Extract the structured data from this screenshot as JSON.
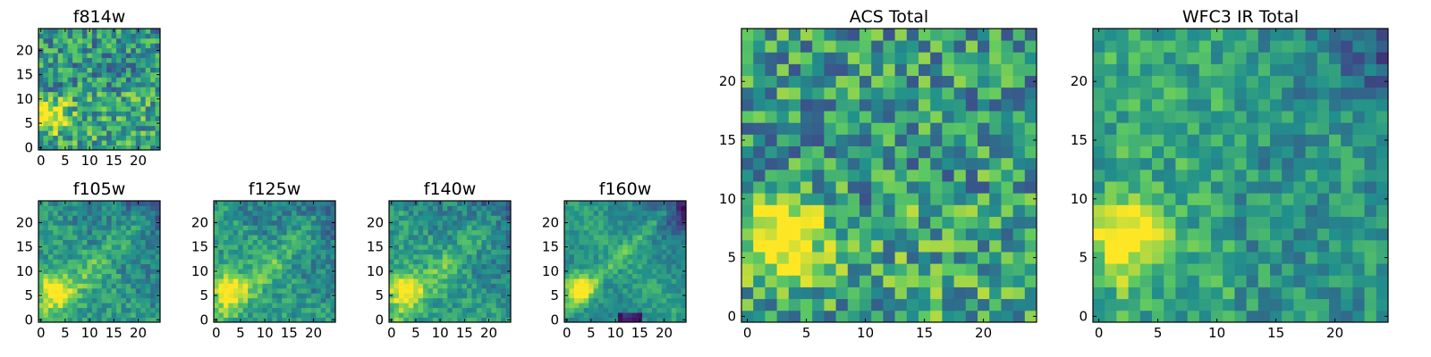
{
  "chart_data": [
    {
      "type": "heatmap",
      "title": "f814w",
      "pattern": "f814w",
      "seed": 11,
      "grid": 25,
      "xlim": [
        0,
        24
      ],
      "ylim": [
        0,
        24
      ],
      "xticks": [
        "0",
        "5",
        "10",
        "15",
        "20"
      ],
      "yticks": [
        "0",
        "5",
        "10",
        "15",
        "20"
      ]
    },
    {
      "type": "heatmap",
      "title": "f105w",
      "pattern": "ir",
      "seed": 23,
      "grid": 25,
      "xlim": [
        0,
        24
      ],
      "ylim": [
        0,
        24
      ],
      "xticks": [
        "0",
        "5",
        "10",
        "15",
        "20"
      ],
      "yticks": [
        "0",
        "5",
        "10",
        "15",
        "20"
      ]
    },
    {
      "type": "heatmap",
      "title": "f125w",
      "pattern": "ir",
      "seed": 37,
      "grid": 25,
      "xlim": [
        0,
        24
      ],
      "ylim": [
        0,
        24
      ],
      "xticks": [
        "0",
        "5",
        "10",
        "15",
        "20"
      ],
      "yticks": [
        "0",
        "5",
        "10",
        "15",
        "20"
      ]
    },
    {
      "type": "heatmap",
      "title": "f140w",
      "pattern": "ir",
      "seed": 41,
      "grid": 25,
      "xlim": [
        0,
        24
      ],
      "ylim": [
        0,
        24
      ],
      "xticks": [
        "0",
        "5",
        "10",
        "15",
        "20"
      ],
      "yticks": [
        "0",
        "5",
        "10",
        "15",
        "20"
      ]
    },
    {
      "type": "heatmap",
      "title": "f160w",
      "pattern": "ir160",
      "seed": 53,
      "grid": 25,
      "xlim": [
        0,
        24
      ],
      "ylim": [
        0,
        24
      ],
      "xticks": [
        "0",
        "5",
        "10",
        "15",
        "20"
      ],
      "yticks": [
        "0",
        "5",
        "10",
        "15",
        "20"
      ]
    },
    {
      "type": "heatmap",
      "title": "ACS Total",
      "pattern": "acs",
      "seed": 67,
      "grid": 25,
      "xlim": [
        0,
        24
      ],
      "ylim": [
        0,
        24
      ],
      "xticks": [
        "0",
        "5",
        "10",
        "15",
        "20"
      ],
      "yticks": [
        "0",
        "5",
        "10",
        "15",
        "20"
      ]
    },
    {
      "type": "heatmap",
      "title": "WFC3 IR Total",
      "pattern": "wfc3",
      "seed": 79,
      "grid": 25,
      "xlim": [
        0,
        24
      ],
      "ylim": [
        0,
        24
      ],
      "xticks": [
        "0",
        "5",
        "10",
        "15",
        "20"
      ],
      "yticks": [
        "0",
        "5",
        "10",
        "15",
        "20"
      ]
    }
  ],
  "colormap": [
    "#440154",
    "#3b528b",
    "#21908c",
    "#5dc962",
    "#fde725"
  ]
}
